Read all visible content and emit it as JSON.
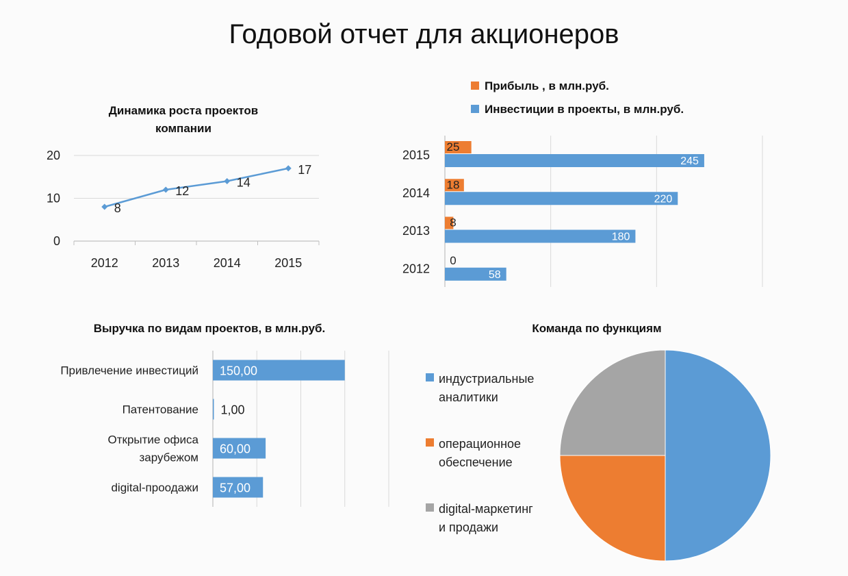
{
  "page": {
    "title": "Годовой отчет для акционеров"
  },
  "colors": {
    "blue": "#5b9bd5",
    "orange": "#ed7d31",
    "gray": "#a5a5a5",
    "grid": "#d9d9d9",
    "axis": "#bfbfbf"
  },
  "chart_data": [
    {
      "type": "line",
      "title_lines": [
        "Динамика роста проектов",
        "компании"
      ],
      "categories": [
        "2012",
        "2013",
        "2014",
        "2015"
      ],
      "values": [
        8,
        12,
        14,
        17
      ],
      "ylim": [
        0,
        20
      ],
      "yticks": [
        "0",
        "10",
        "20"
      ],
      "grid": true,
      "data_labels": true
    },
    {
      "type": "bar",
      "orientation": "horizontal",
      "categories": [
        "2012",
        "2013",
        "2014",
        "2015"
      ],
      "series": [
        {
          "name": "Прибыль , в млн.руб.",
          "color": "orange",
          "values": [
            0,
            8,
            18,
            25
          ]
        },
        {
          "name": "Инвестиции в проекты, в млн.руб.",
          "color": "blue",
          "values": [
            58,
            180,
            220,
            245
          ]
        }
      ],
      "xlim": [
        0,
        300
      ],
      "grid": true,
      "legend_position": "top"
    },
    {
      "type": "bar",
      "orientation": "horizontal",
      "title": "Выручка по видам проектов, в млн.руб.",
      "categories": [
        [
          "Привлечение инвестиций"
        ],
        [
          "Патентование"
        ],
        [
          "Открытие офиса",
          "зарубежом"
        ],
        [
          "digital-проодажи"
        ]
      ],
      "values": [
        150,
        1,
        60,
        57
      ],
      "value_labels": [
        "150,00",
        "1,00",
        "60,00",
        "57,00"
      ],
      "xlim": [
        0,
        200
      ],
      "grid": true
    },
    {
      "type": "pie",
      "title": "Команда по функциям",
      "slices": [
        {
          "label_lines": [
            "индустриальные",
            "аналитики"
          ],
          "value": 50,
          "color": "blue"
        },
        {
          "label_lines": [
            "операционное",
            "обеспечение"
          ],
          "value": 25,
          "color": "orange"
        },
        {
          "label_lines": [
            "digital-маркетинг",
            "и продажи"
          ],
          "value": 25,
          "color": "gray"
        }
      ],
      "legend_position": "left"
    }
  ]
}
